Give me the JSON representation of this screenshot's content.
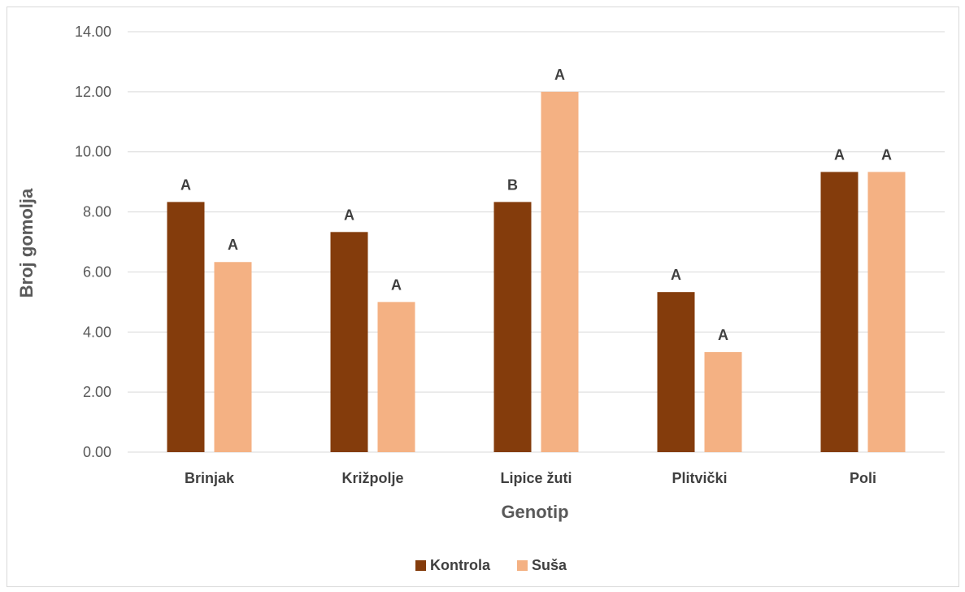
{
  "chart_data": {
    "type": "bar",
    "categories": [
      "Brinjak",
      "Križpolje",
      "Lipice žuti",
      "Plitvički",
      "Poli"
    ],
    "series": [
      {
        "name": "Kontrola",
        "color": "#843c0c",
        "values": [
          8.33,
          7.33,
          8.33,
          5.33,
          9.33
        ],
        "labels": [
          "A",
          "A",
          "B",
          "A",
          "A"
        ]
      },
      {
        "name": "Suša",
        "color": "#f4b183",
        "values": [
          6.33,
          5.0,
          12.0,
          3.33,
          9.33
        ],
        "labels": [
          "A",
          "A",
          "A",
          "A",
          "A"
        ]
      }
    ],
    "xlabel": "Genotip",
    "ylabel": "Broj gomolja",
    "ylim": [
      0,
      14
    ],
    "yticks": [
      "0.00",
      "2.00",
      "4.00",
      "6.00",
      "8.00",
      "10.00",
      "12.00",
      "14.00"
    ],
    "grid": true,
    "legend": "bottom"
  }
}
